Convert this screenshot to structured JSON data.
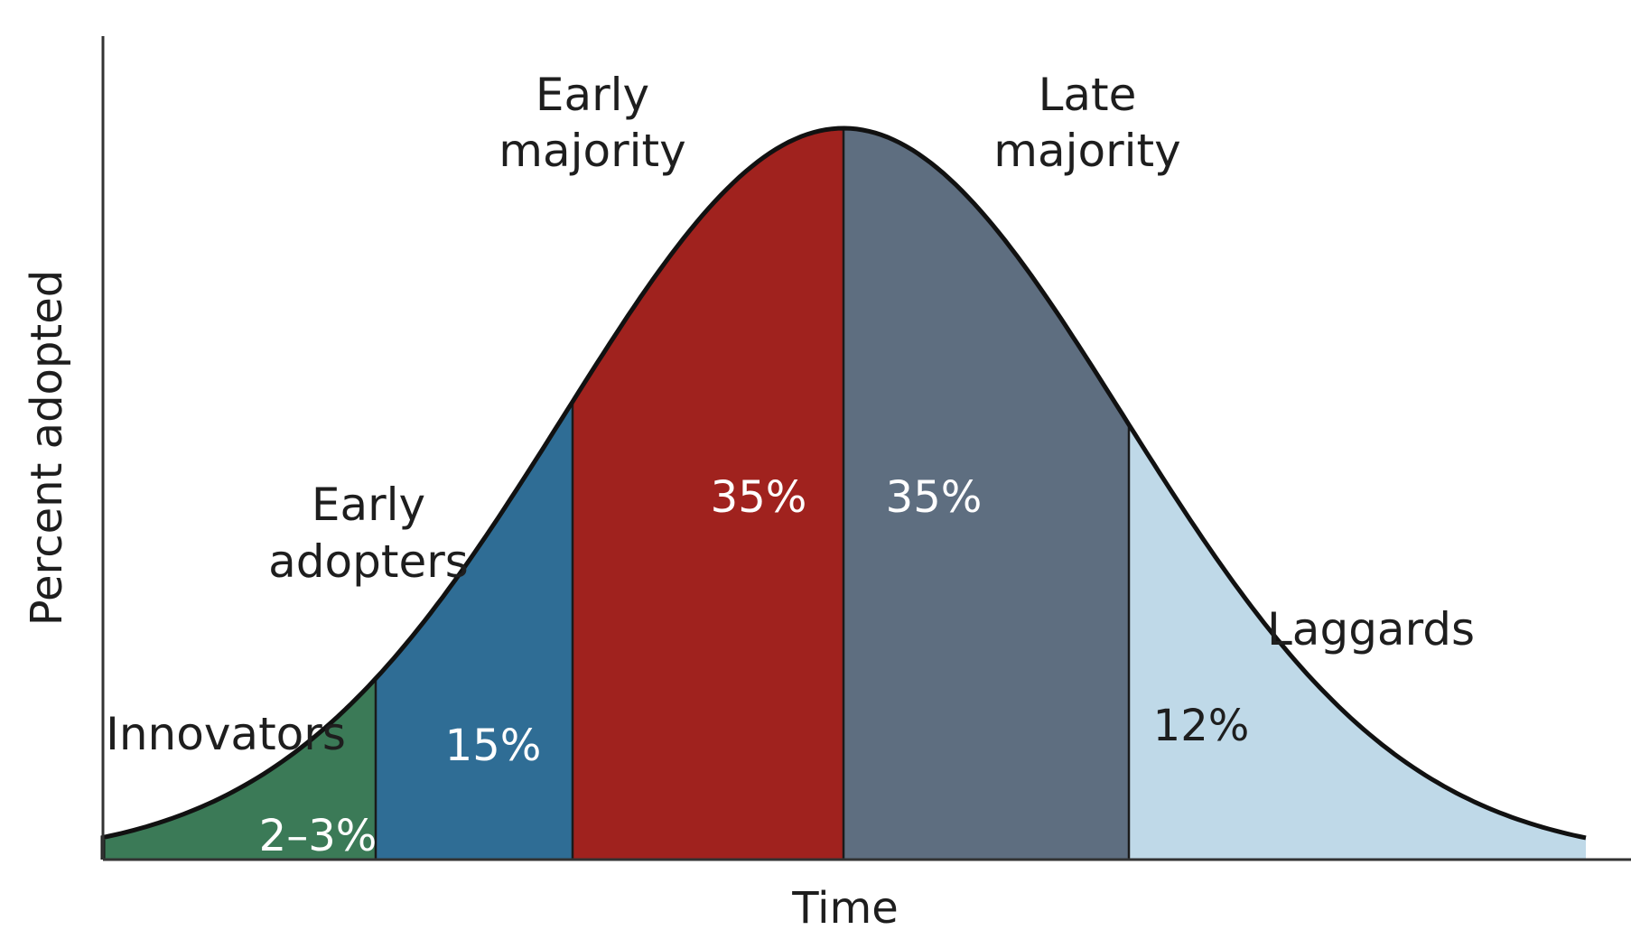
{
  "chart_data": {
    "type": "area",
    "title": "",
    "xlabel": "Time",
    "ylabel": "Percent adopted",
    "grid": false,
    "legend": "none",
    "segments": [
      {
        "name": "Innovators",
        "label_lines": [
          "Innovators"
        ],
        "value_label": "2–3%",
        "color": "#3b7a57",
        "value_color": "#ffffff"
      },
      {
        "name": "Early adopters",
        "label_lines": [
          "Early",
          "adopters"
        ],
        "value_label": "15%",
        "color": "#2f6d95",
        "value_color": "#ffffff"
      },
      {
        "name": "Early majority",
        "label_lines": [
          "Early",
          "majority"
        ],
        "value_label": "35%",
        "color": "#a0221e",
        "value_color": "#ffffff"
      },
      {
        "name": "Late majority",
        "label_lines": [
          "Late",
          "majority"
        ],
        "value_label": "35%",
        "color": "#5e6e80",
        "value_color": "#ffffff"
      },
      {
        "name": "Laggards",
        "label_lines": [
          "Laggards"
        ],
        "value_label": "12%",
        "color": "#bfd9e8",
        "value_color": "#1e1e1e"
      }
    ]
  }
}
